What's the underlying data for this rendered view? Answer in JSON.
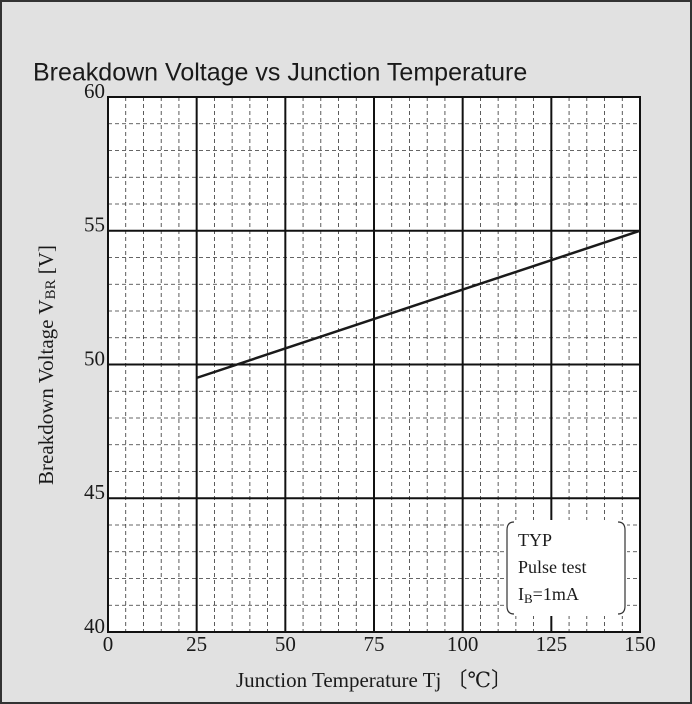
{
  "chart_data": {
    "type": "line",
    "title": "Breakdown Voltage vs Junction Temperature",
    "xlabel": "Junction Temperature  Tj 〔℃〕",
    "ylabel": {
      "text": "Breakdown Voltage  V",
      "sub": "BR",
      "unit": " [V]"
    },
    "annotation": {
      "lines": [
        "TYP",
        "Pulse test"
      ],
      "last": {
        "text": "I",
        "sub": "B",
        "rest": "=1mA"
      }
    },
    "x": [
      25,
      150
    ],
    "series": [
      {
        "name": "TYP",
        "color": "#1a1a1a",
        "values": [
          49.5,
          55.0
        ]
      }
    ],
    "xlim": [
      0,
      150
    ],
    "xticks": [
      0,
      25,
      50,
      75,
      100,
      125,
      150
    ],
    "ylim": [
      40,
      60
    ],
    "yticks": [
      40,
      45,
      50,
      55,
      60
    ],
    "grid": true,
    "minor_grid": {
      "x": 5,
      "y": 1
    }
  }
}
